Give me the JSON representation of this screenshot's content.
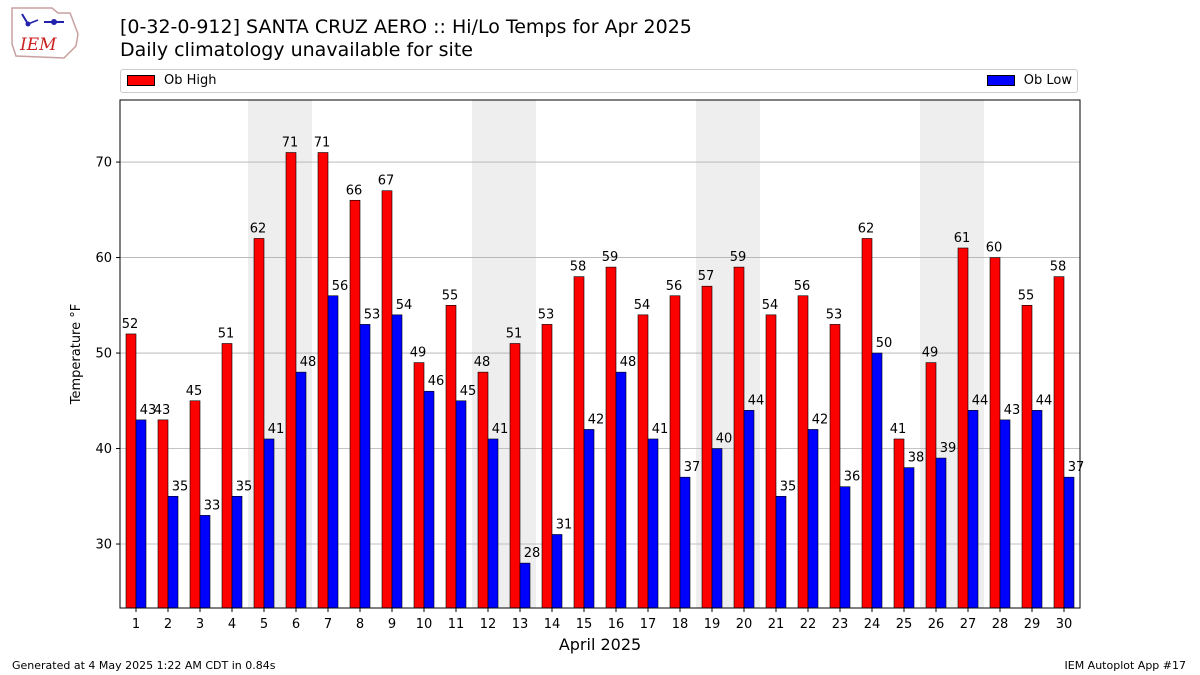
{
  "logo": {
    "text": "IEM"
  },
  "header": {
    "title": "[0-32-0-912] SANTA CRUZ AERO :: Hi/Lo Temps for Apr 2025",
    "subtitle": "Daily climatology unavailable for site"
  },
  "footer": {
    "left": "Generated at 4 May 2025 1:22 AM CDT in 0.84s",
    "right": "IEM Autoplot App #17"
  },
  "colors": {
    "high": "#ff0000",
    "low": "#0000ff",
    "weekend_band": "#eeeeee",
    "grid": "#b0b0b0"
  },
  "chart_data": {
    "type": "bar",
    "title": "[0-32-0-912] SANTA CRUZ AERO :: Hi/Lo Temps for Apr 2025",
    "subtitle": "Daily climatology unavailable for site",
    "xlabel": "April 2025",
    "ylabel": "Temperature °F",
    "ylim": [
      23.3,
      76.5
    ],
    "yticks": [
      30,
      40,
      50,
      60,
      70
    ],
    "grid": true,
    "legend_placement": "top",
    "categories": [
      "1",
      "2",
      "3",
      "4",
      "5",
      "6",
      "7",
      "8",
      "9",
      "10",
      "11",
      "12",
      "13",
      "14",
      "15",
      "16",
      "17",
      "18",
      "19",
      "20",
      "21",
      "22",
      "23",
      "24",
      "25",
      "26",
      "27",
      "28",
      "29",
      "30"
    ],
    "shaded_days": [
      5,
      6,
      12,
      13,
      19,
      20,
      26,
      27
    ],
    "series": [
      {
        "name": "Ob High",
        "values": [
          52,
          43,
          45,
          51,
          62,
          71,
          71,
          66,
          67,
          49,
          55,
          48,
          51,
          53,
          58,
          59,
          54,
          56,
          57,
          59,
          54,
          56,
          53,
          62,
          41,
          49,
          61,
          60,
          55,
          58
        ]
      },
      {
        "name": "Ob Low",
        "values": [
          43,
          35,
          33,
          35,
          41,
          48,
          56,
          53,
          54,
          46,
          45,
          41,
          28,
          31,
          42,
          48,
          41,
          37,
          40,
          44,
          35,
          42,
          36,
          50,
          38,
          39,
          44,
          43,
          44,
          37
        ]
      }
    ]
  }
}
